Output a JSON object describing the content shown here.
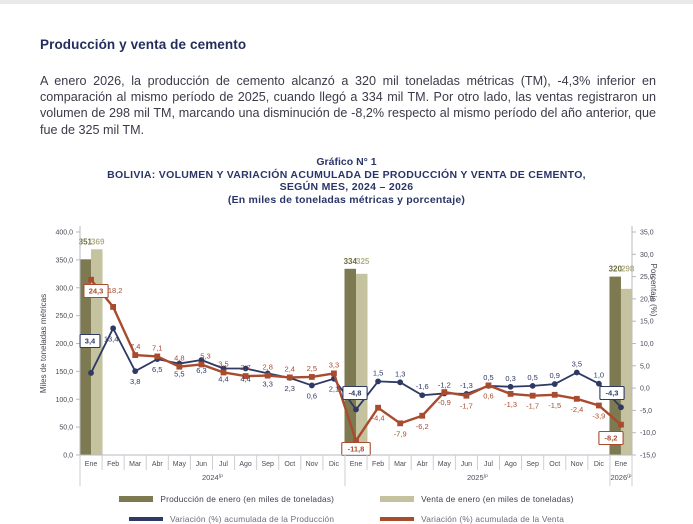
{
  "page": {
    "heading": "Producción y venta de cemento",
    "paragraph": "A enero 2026, la producción de cemento alcanzó a 320 mil toneladas métricas (TM), -4,3% inferior en comparación al mismo período de 2025, cuando llegó a 334 mil TM. Por otro lado, las ventas registraron un volumen de 298 mil TM, marcando una disminución de -8,2% respecto al mismo período del año anterior, que fue de 325 mil TM."
  },
  "chart_header": {
    "line1": "Gráfico N° 1",
    "line2_bold": "BOLIVIA:",
    "line2_rest": " VOLUMEN Y VARIACIÓN ACUMULADA DE PRODUCCIÓN Y VENTA DE CEMENTO,",
    "line3": "SEGÚN MES, 2024 – 2026",
    "line4": "(En miles de toneladas métricas y porcentaje)"
  },
  "chart_data": {
    "type": "combo-bar-line-dual-axis",
    "left_axis": {
      "label": "Miles de toneladas métricas",
      "min": 0,
      "max": 400,
      "step": 50,
      "ticks": [
        "400,0",
        "350,0",
        "300,0",
        "250,0",
        "200,0",
        "150,0",
        "100,0",
        "50,0",
        "0,0"
      ]
    },
    "right_axis": {
      "label": "Porcentaje (%)",
      "min": -15,
      "max": 35,
      "step": 5,
      "ticks": [
        "35,0",
        "30,0",
        "25,0",
        "20,0",
        "15,0",
        "10,0",
        "5,0",
        "0,0",
        "-5,0",
        "-10,0",
        "-15,0"
      ]
    },
    "groups": [
      {
        "year": "2024",
        "sup": "(p",
        "months": [
          "Ene",
          "Feb",
          "Mar",
          "Abr",
          "May",
          "Jun",
          "Jul",
          "Ago",
          "Sep",
          "Oct",
          "Nov",
          "Dic"
        ]
      },
      {
        "year": "2025",
        "sup": "(p",
        "months": [
          "Ene",
          "Feb",
          "Mar",
          "Abr",
          "May",
          "Jun",
          "Jul",
          "Ago",
          "Sep",
          "Oct",
          "Nov",
          "Dic"
        ]
      },
      {
        "year": "2026",
        "sup": "(p",
        "months": [
          "Ene"
        ]
      }
    ],
    "bars": [
      {
        "month_index": 0,
        "produccion": 351,
        "venta": 369,
        "produccion_label": "351",
        "venta_label": "369"
      },
      {
        "month_index": 12,
        "produccion": 334,
        "venta": 325,
        "produccion_label": "334",
        "venta_label": "325"
      },
      {
        "month_index": 24,
        "produccion": 320,
        "venta": 298,
        "produccion_label": "320",
        "venta_label": "298"
      }
    ],
    "series": [
      {
        "name": "Variación (%) acumulada de la Producción",
        "marker": "circle",
        "values": [
          3.4,
          13.4,
          3.8,
          6.5,
          5.5,
          6.3,
          4.4,
          4.4,
          3.3,
          2.3,
          0.6,
          2.1,
          -4.8,
          1.5,
          1.3,
          -1.6,
          -1.2,
          -1.3,
          0.5,
          0.3,
          0.5,
          0.9,
          3.5,
          1.0,
          -4.3
        ],
        "labels": [
          "3,4",
          "13,4",
          "3,8",
          "6,5",
          "5,5",
          "6,3",
          "4,4",
          "4,4",
          "3,3",
          "2,3",
          "0,6",
          "2,1",
          "-4,8",
          "1,5",
          "1,3",
          "-1,6",
          "-1,2",
          "-1,3",
          "0,5",
          "0,3",
          "0,5",
          "0,9",
          "3,5",
          "1,0",
          "-4,3"
        ]
      },
      {
        "name": "Variación (%) acumulada de la Venta",
        "marker": "square",
        "values": [
          24.3,
          18.2,
          7.4,
          7.1,
          4.8,
          5.3,
          3.5,
          2.7,
          2.8,
          2.4,
          2.5,
          3.3,
          -11.8,
          -4.4,
          -7.9,
          -6.2,
          -0.9,
          -1.7,
          0.6,
          -1.3,
          -1.7,
          -1.5,
          -2.4,
          -3.9,
          -8.2
        ],
        "labels": [
          "24,3",
          "18,2",
          "7,4",
          "7,1",
          "4,8",
          "5,3",
          "3,5",
          "2,7",
          "2,8",
          "2,4",
          "2,5",
          "3,3",
          "-11,8",
          "-4,4",
          "-7,9",
          "-6,2",
          "-0,9",
          "-1,7",
          "0,6",
          "-1,3",
          "-1,7",
          "-1,5",
          "-2,4",
          "-3,9",
          "-8,2"
        ]
      }
    ],
    "boxed_indices": [
      0,
      12,
      24
    ],
    "colors": {
      "produccion_bar": "#7d7a51",
      "venta_bar": "#c5c2a0",
      "produccion_bar_label": "#6f6c40",
      "venta_bar_label": "#b2af85",
      "produccion_line": "#2e3964",
      "venta_line": "#a84b2f",
      "axis_gray": "#b9b9be",
      "tick_text": "#4a4a58"
    }
  },
  "legend": {
    "row1": [
      {
        "label": "Producción de enero (en miles de toneladas)",
        "color": "#7d7a51"
      },
      {
        "label": "Venta de enero (en miles de toneladas)",
        "color": "#c5c2a0"
      }
    ],
    "row2": [
      {
        "label": "Variación (%) acumulada de la Producción",
        "color": "#2e3964"
      },
      {
        "label": "Variación (%) acumulada de la Venta",
        "color": "#a84b2f"
      }
    ]
  }
}
